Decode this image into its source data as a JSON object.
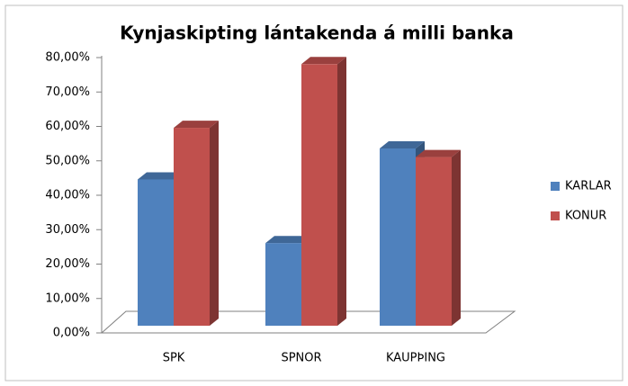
{
  "chart_data": {
    "type": "bar3d",
    "title": "Kynjaskipting lántakenda á milli banka",
    "categories": [
      "SPK",
      "SPNOR",
      "KAUPÞING"
    ],
    "series": [
      {
        "name": "KARLAR",
        "color": "#4f81bd",
        "values": [
          42.5,
          24,
          51.5
        ]
      },
      {
        "name": "KONUR",
        "color": "#c0504d",
        "values": [
          57.5,
          76,
          49
        ]
      }
    ],
    "ylim": [
      0,
      80
    ],
    "yticks": [
      {
        "value": 0,
        "label": "0,00%"
      },
      {
        "value": 10,
        "label": "10,00%"
      },
      {
        "value": 20,
        "label": "20,00%"
      },
      {
        "value": 30,
        "label": "30,00%"
      },
      {
        "value": 40,
        "label": "40,00%"
      },
      {
        "value": 50,
        "label": "50,00%"
      },
      {
        "value": 60,
        "label": "60,00%"
      },
      {
        "value": 70,
        "label": "70,00%"
      },
      {
        "value": 80,
        "label": "80,00%"
      }
    ],
    "legend": "right"
  }
}
